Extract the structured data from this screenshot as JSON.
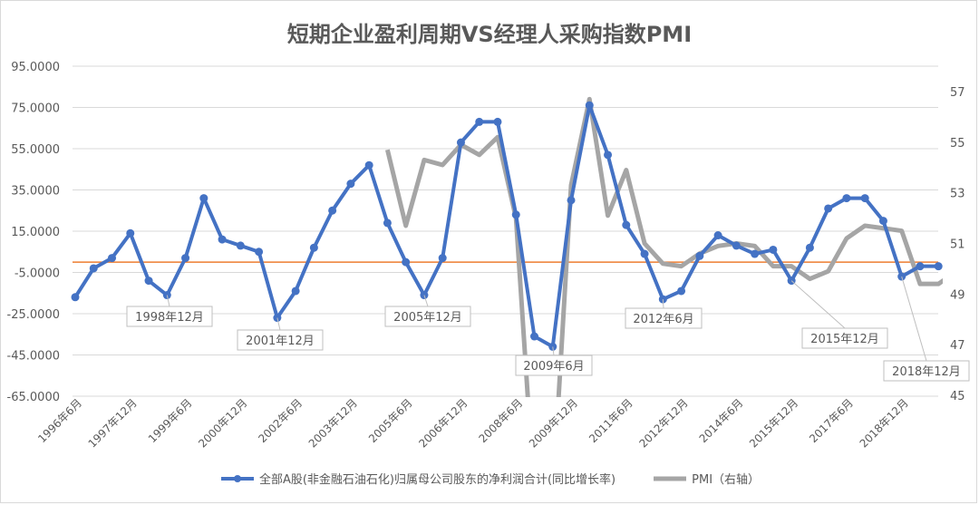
{
  "title": "短期企业盈利周期VS经理人采购指数PMI",
  "legend": {
    "series1": "全部A股(非金融石油石化)归属母公司股东的净利润合计(同比增长率)",
    "series2": "PMI（右轴）"
  },
  "colors": {
    "blue": "#4472c4",
    "gray": "#a5a5a5",
    "orange": "#ed7d31",
    "grid": "#d9d9d9",
    "text": "#595959"
  },
  "chart_data": {
    "type": "line",
    "title": "短期企业盈利周期VS经理人采购指数PMI",
    "xlabel": "",
    "ylabel": "",
    "ylim": [
      -65,
      95
    ],
    "y2lim": [
      45,
      57
    ],
    "left_ticks": [
      "95.0000",
      "75.0000",
      "55.0000",
      "35.0000",
      "15.0000",
      "-5.0000",
      "-25.0000",
      "-45.0000",
      "-65.0000"
    ],
    "right_ticks": [
      "57",
      "55",
      "53",
      "51",
      "49",
      "47",
      "45"
    ],
    "x_tick_labels": [
      "1996年6月",
      "1997年12月",
      "1999年6月",
      "2000年12月",
      "2002年6月",
      "2003年12月",
      "2005年6月",
      "2006年12月",
      "2008年6月",
      "2009年12月",
      "2011年6月",
      "2012年12月",
      "2014年6月",
      "2015年12月",
      "2017年6月",
      "2018年12月"
    ],
    "annotations": [
      {
        "label": "1998年12月",
        "index": 5,
        "bx": 140,
        "by": 338
      },
      {
        "label": "2001年12月",
        "index": 11,
        "bx": 262,
        "by": 364
      },
      {
        "label": "2005年12月",
        "index": 19,
        "bx": 425,
        "by": 338
      },
      {
        "label": "2009年6月",
        "index": 26,
        "bx": 569,
        "by": 392
      },
      {
        "label": "2012年6月",
        "index": 32,
        "bx": 690,
        "by": 340
      },
      {
        "label": "2015年12月",
        "index": 39,
        "bx": 885,
        "by": 362
      },
      {
        "label": "2018年12月",
        "index": 45,
        "bx": 975,
        "by": 398
      }
    ],
    "reference_line": {
      "value": 0,
      "color": "#ed7d31"
    },
    "series": [
      {
        "name": "全部A股(非金融石油石化)归属母公司股东的净利润合计(同比增长率)",
        "axis": "left",
        "values": [
          -17,
          -3,
          2,
          14,
          -9,
          -16,
          2,
          31,
          11,
          8,
          5,
          -27,
          -14,
          7,
          25,
          38,
          47,
          19,
          0,
          -16,
          2,
          58,
          68,
          68,
          23,
          -36,
          -41,
          30,
          76,
          52,
          18,
          4,
          -18,
          -14,
          3,
          13,
          8,
          4,
          6,
          -9,
          7,
          26,
          31,
          31,
          20,
          -7,
          -2,
          -2
        ]
      },
      {
        "name": "PMI（右轴）",
        "axis": "right",
        "start_index": 17,
        "values": [
          54.7,
          51.7,
          54.3,
          54.1,
          54.9,
          54.5,
          55.2,
          52.0,
          41.0,
          41.0,
          53.3,
          56.7,
          52.1,
          53.9,
          51.0,
          50.2,
          50.1,
          50.6,
          50.9,
          51.0,
          50.9,
          50.1,
          50.1,
          49.6,
          49.9,
          51.2,
          51.7,
          51.6,
          51.5,
          49.4,
          49.4,
          49.9
        ]
      }
    ]
  }
}
